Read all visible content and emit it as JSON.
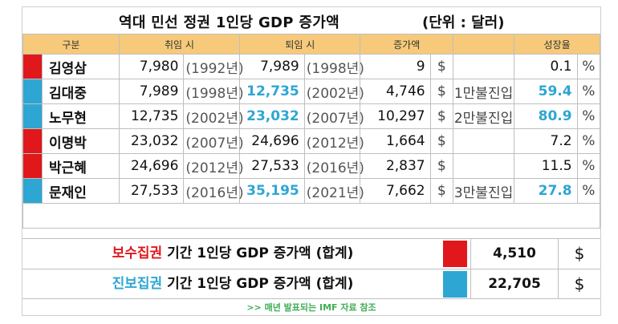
{
  "title": "역대 민선 정권 1인당 GDP 증가액",
  "unit": "(단위 : 달러)",
  "headers": {
    "category": "구분",
    "start": "취임 시",
    "end": "퇴임 시",
    "increase": "증가액",
    "growth": "성장율"
  },
  "colors": {
    "red": "#e0181b",
    "blue": "#2ea6d4",
    "header": "#f6ca7a"
  },
  "rows": [
    {
      "name": "김영삼",
      "party_color": "red",
      "start": "7,980",
      "start_year": "(1992년)",
      "end": "7,989",
      "end_year": "(1998년)",
      "end_highlight": false,
      "increase": "9",
      "currency": "$",
      "note": "",
      "growth": "0.1",
      "growth_highlight": false,
      "pct": "%"
    },
    {
      "name": "김대중",
      "party_color": "blue",
      "start": "7,989",
      "start_year": "(1998년)",
      "end": "12,735",
      "end_year": "(2002년)",
      "end_highlight": true,
      "increase": "4,746",
      "currency": "$",
      "note": "1만불진입",
      "growth": "59.4",
      "growth_highlight": true,
      "pct": "%"
    },
    {
      "name": "노무현",
      "party_color": "blue",
      "start": "12,735",
      "start_year": "(2002년)",
      "end": "23,032",
      "end_year": "(2007년)",
      "end_highlight": true,
      "increase": "10,297",
      "currency": "$",
      "note": "2만불진입",
      "growth": "80.9",
      "growth_highlight": true,
      "pct": "%"
    },
    {
      "name": "이명박",
      "party_color": "red",
      "start": "23,032",
      "start_year": "(2007년)",
      "end": "24,696",
      "end_year": "(2012년)",
      "end_highlight": false,
      "increase": "1,664",
      "currency": "$",
      "note": "",
      "growth": "7.2",
      "growth_highlight": false,
      "pct": "%"
    },
    {
      "name": "박근혜",
      "party_color": "red",
      "start": "24,696",
      "start_year": "(2012년)",
      "end": "27,533",
      "end_year": "(2016년)",
      "end_highlight": false,
      "increase": "2,837",
      "currency": "$",
      "note": "",
      "growth": "11.5",
      "growth_highlight": false,
      "pct": "%"
    },
    {
      "name": "문재인",
      "party_color": "blue",
      "start": "27,533",
      "start_year": "(2016년)",
      "end": "35,195",
      "end_year": "(2021년)",
      "end_highlight": true,
      "increase": "7,662",
      "currency": "$",
      "note": "3만불진입",
      "growth": "27.8",
      "growth_highlight": true,
      "pct": "%"
    }
  ],
  "summary": {
    "conservative": {
      "party": "보수집권",
      "rest": " 기간  1인당 GDP 증가액 (합계)",
      "value": "4,510",
      "currency": "$"
    },
    "progressive": {
      "party": "진보집권",
      "rest": " 기간  1인당 GDP 증가액 (합계)",
      "value": "22,705",
      "currency": "$"
    }
  },
  "source": ">> 매년 발표되는 IMF 자료 참조"
}
